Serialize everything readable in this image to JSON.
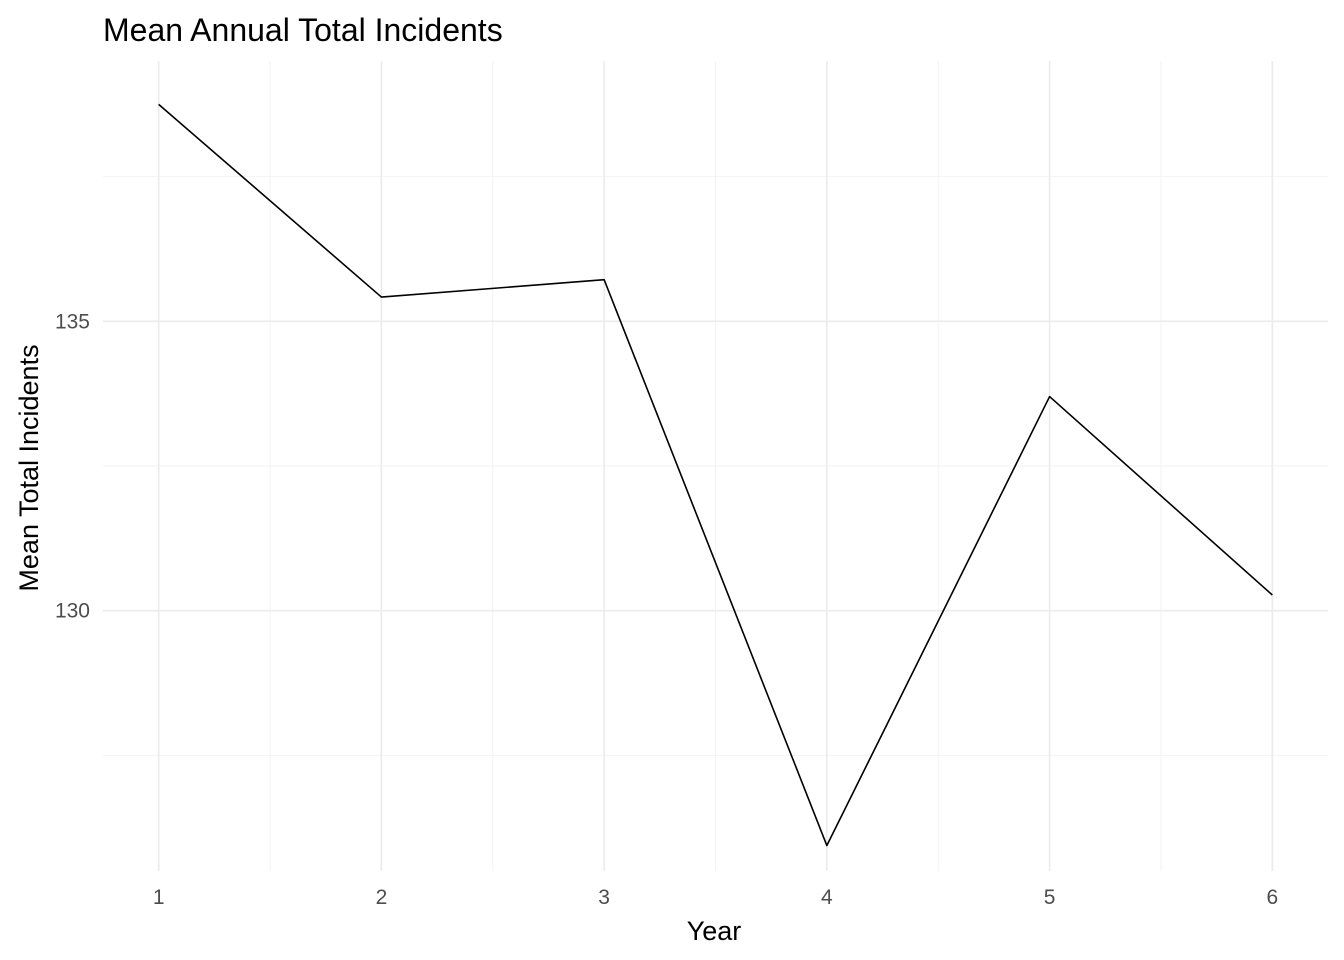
{
  "chart_data": {
    "type": "line",
    "title": "Mean Annual Total Incidents",
    "xlabel": "Year",
    "ylabel": "Mean Total Incidents",
    "x": [
      1,
      2,
      3,
      4,
      5,
      6
    ],
    "x_ticks": [
      "1",
      "2",
      "3",
      "4",
      "5",
      "6"
    ],
    "y_ticks": [
      130,
      135
    ],
    "y_tick_labels": [
      "130",
      "135"
    ],
    "series": [
      {
        "values": [
          138.75,
          135.42,
          135.72,
          125.94,
          133.7,
          130.27
        ]
      }
    ],
    "xlim": [
      0.75,
      6.25
    ],
    "ylim": [
      125.5,
      139.5
    ],
    "grid": true,
    "legend": "none",
    "line_color": "#000000"
  }
}
